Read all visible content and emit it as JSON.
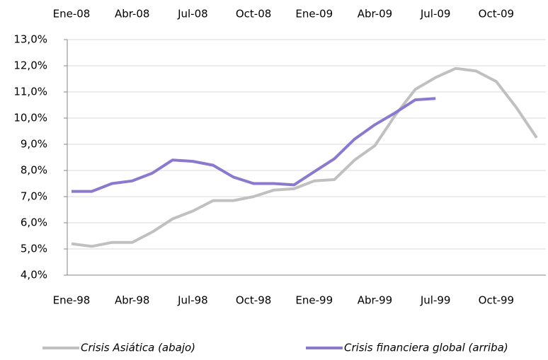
{
  "chart_data": {
    "type": "line",
    "categories": [
      "Ene-98",
      null,
      null,
      "Abr-98",
      null,
      null,
      "Jul-98",
      null,
      null,
      "Oct-98",
      null,
      null,
      "Ene-99",
      null,
      null,
      "Abr-99",
      null,
      null,
      "Jul-99",
      null,
      null,
      "Oct-99",
      null,
      null
    ],
    "categories_top": [
      "Ene-08",
      null,
      null,
      "Abr-08",
      null,
      null,
      "Jul-08",
      null,
      null,
      "Oct-08",
      null,
      null,
      "Ene-09",
      null,
      null,
      "Abr-09",
      null,
      null,
      "Jul-09",
      null,
      null,
      "Oct-09",
      null,
      null
    ],
    "series": [
      {
        "name": "Crisis Asiática (abajo)",
        "color": "#c0c0c0",
        "values": [
          5.2,
          5.1,
          5.25,
          5.25,
          5.65,
          6.15,
          6.45,
          6.85,
          6.85,
          7.0,
          7.25,
          7.3,
          7.6,
          7.65,
          8.4,
          8.95,
          10.1,
          11.1,
          11.55,
          11.9,
          11.8,
          11.4,
          10.4,
          9.25
        ]
      },
      {
        "name": "Crisis financiera global (arriba)",
        "color": "#8b78cf",
        "values": [
          7.2,
          7.2,
          7.5,
          7.6,
          7.9,
          8.4,
          8.35,
          8.2,
          7.75,
          7.5,
          7.5,
          7.45,
          7.95,
          8.45,
          9.2,
          9.75,
          10.2,
          10.7,
          10.75,
          null,
          null,
          null,
          null,
          null
        ]
      }
    ],
    "ylim": [
      4,
      13
    ],
    "yticks": [
      {
        "value": 4,
        "label": "4,0%"
      },
      {
        "value": 5,
        "label": "5,0%"
      },
      {
        "value": 6,
        "label": "6,0%"
      },
      {
        "value": 7,
        "label": "7,0%"
      },
      {
        "value": 8,
        "label": "8,0%"
      },
      {
        "value": 9,
        "label": "9,0%"
      },
      {
        "value": 10,
        "label": "10,0%"
      },
      {
        "value": 11,
        "label": "11,0%"
      },
      {
        "value": 12,
        "label": "12,0%"
      },
      {
        "value": 13,
        "label": "13,0%"
      }
    ],
    "grid": true
  }
}
